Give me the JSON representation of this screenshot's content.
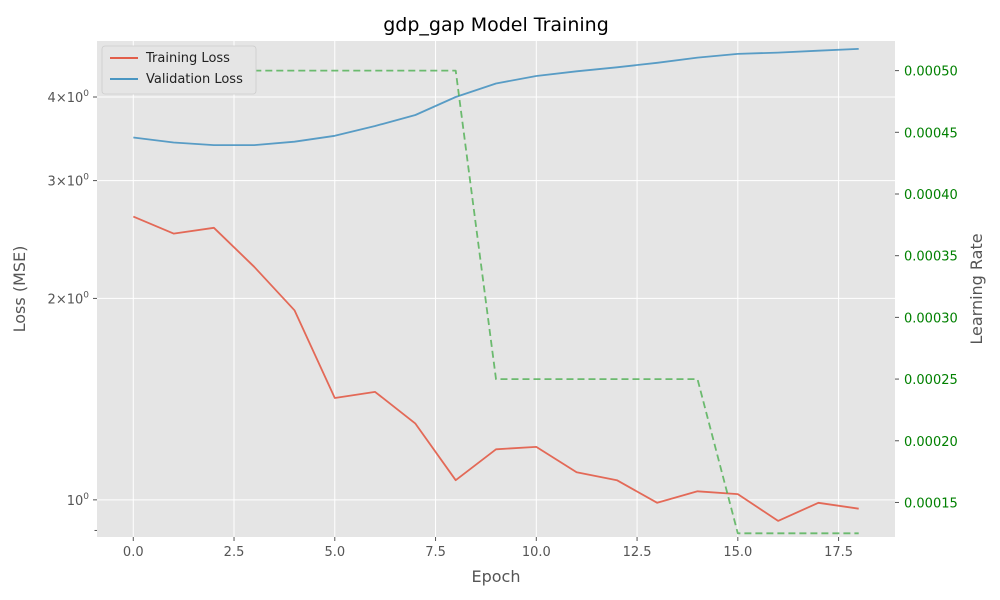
{
  "chart_data": {
    "type": "line",
    "title": "gdp_gap Model Training",
    "xlabel": "Epoch",
    "ylabel": "Loss (MSE)",
    "y2label": "Learning Rate",
    "xlim": [
      -0.9,
      18.9
    ],
    "ylim": [
      0.88,
      4.85
    ],
    "yscale": "log",
    "y2lim": [
      0.000122,
      0.000524
    ],
    "x_ticks": [
      0,
      2.5,
      5,
      7.5,
      10,
      12.5,
      15,
      17.5
    ],
    "x_tick_labels": [
      "0.0",
      "2.5",
      "5.0",
      "7.5",
      "10.0",
      "12.5",
      "15.0",
      "17.5"
    ],
    "y_ticks": [
      1,
      2,
      3,
      4
    ],
    "y_tick_bases": [
      "1",
      "2",
      "3",
      "4"
    ],
    "y_tick_sup": "0",
    "y_minor_ticks": [
      0.9
    ],
    "y2_ticks": [
      0.00015,
      0.0002,
      0.00025,
      0.0003,
      0.00035,
      0.0004,
      0.00045,
      0.0005
    ],
    "y2_tick_labels": [
      "0.00015",
      "0.00020",
      "0.00025",
      "0.00030",
      "0.00035",
      "0.00040",
      "0.00045",
      "0.00050"
    ],
    "grid": true,
    "legend_position": "top-left",
    "x": [
      0,
      1,
      2,
      3,
      4,
      5,
      6,
      7,
      8,
      9,
      10,
      11,
      12,
      13,
      14,
      15,
      16,
      17,
      18
    ],
    "series": [
      {
        "name": "Training Loss",
        "color": "#E24A33",
        "axis": "left",
        "style": "solid",
        "values": [
          2.65,
          2.5,
          2.55,
          2.23,
          1.92,
          1.42,
          1.45,
          1.3,
          1.07,
          1.19,
          1.2,
          1.1,
          1.07,
          0.99,
          1.03,
          1.02,
          0.93,
          0.99,
          0.97
        ]
      },
      {
        "name": "Validation Loss",
        "color": "#348ABD",
        "axis": "left",
        "style": "solid",
        "values": [
          3.48,
          3.42,
          3.39,
          3.39,
          3.43,
          3.5,
          3.62,
          3.76,
          4.0,
          4.19,
          4.3,
          4.37,
          4.43,
          4.5,
          4.58,
          4.64,
          4.66,
          4.69,
          4.72
        ]
      },
      {
        "name": "",
        "color": "#4CAF50",
        "axis": "right",
        "style": "dashed",
        "values": [
          0.0005,
          0.0005,
          0.0005,
          0.0005,
          0.0005,
          0.0005,
          0.0005,
          0.0005,
          0.0005,
          0.00025,
          0.00025,
          0.00025,
          0.00025,
          0.00025,
          0.00025,
          0.000125,
          0.000125,
          0.000125,
          0.000125
        ]
      }
    ]
  },
  "colors": {
    "plot_background": "#E5E5E5",
    "grid": "#FFFFFF",
    "right_axis_text": "#008000"
  }
}
